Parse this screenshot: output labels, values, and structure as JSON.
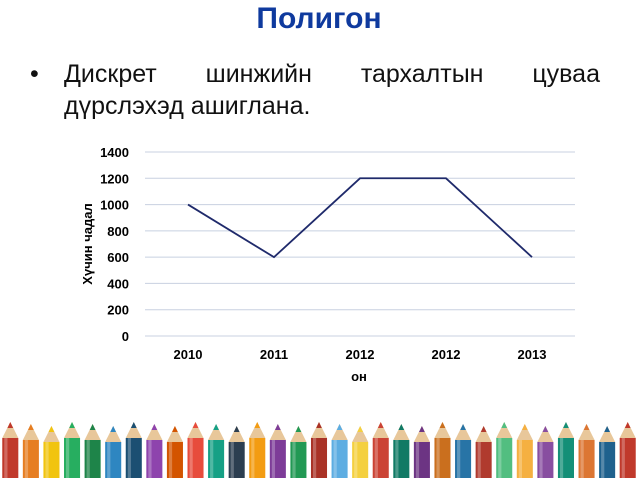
{
  "slide": {
    "title": "Полигон",
    "bullet": "Дискрет шинжийн тархалтын цуваа дүрслэхэд ашиглана."
  },
  "chart_data": {
    "type": "line",
    "categories": [
      "2010",
      "2011",
      "2012",
      "2012",
      "2013"
    ],
    "series": [
      {
        "values": [
          1000,
          600,
          1200,
          1200,
          600
        ]
      }
    ],
    "xlabel": "он",
    "ylabel": "Хүчин чадал",
    "ylim": [
      0,
      1400
    ],
    "yticks": [
      0,
      200,
      400,
      600,
      800,
      1000,
      1200,
      1400
    ],
    "grid": true,
    "line_color": "#1f2a6b",
    "grid_color": "#c8d0e0"
  },
  "decoration": {
    "pencil_colors": [
      "#c0392b",
      "#e67e22",
      "#f1c40f",
      "#27ae60",
      "#1e8449",
      "#2e86c1",
      "#1b4f72",
      "#8e44ad",
      "#d35400",
      "#e74c3c",
      "#16a085",
      "#2c3e50",
      "#f39c12",
      "#7d3c98",
      "#229954",
      "#a93226",
      "#5dade2",
      "#f4d03f",
      "#cb4335",
      "#117a65",
      "#6c3483",
      "#ca6f1e",
      "#2874a6",
      "#b03a2e",
      "#52be80",
      "#f5b041",
      "#884ea0",
      "#148f77",
      "#dc7633",
      "#1f618d"
    ]
  }
}
